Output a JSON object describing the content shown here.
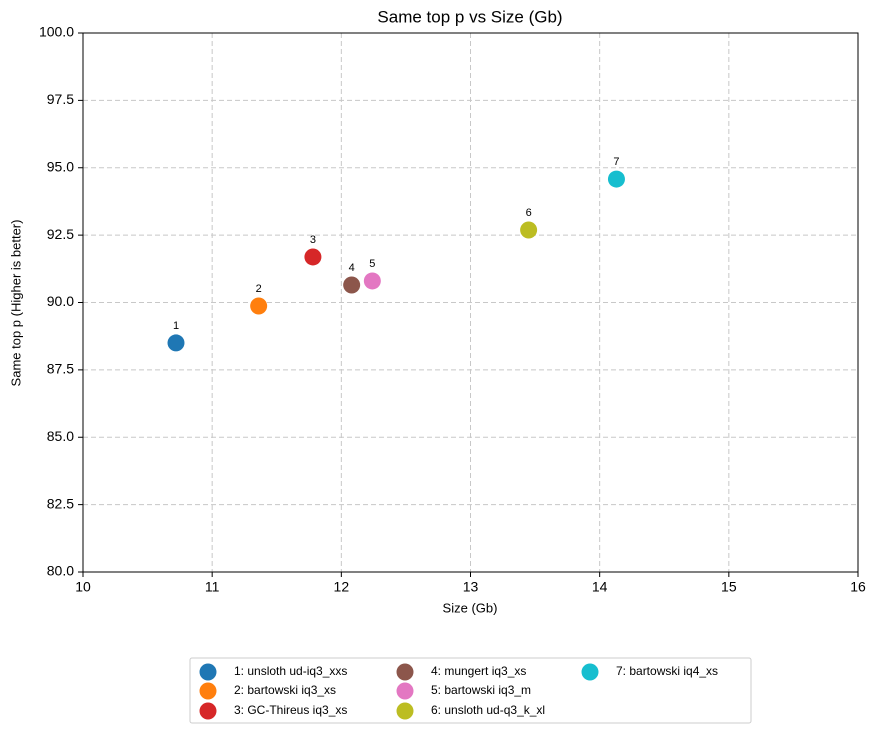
{
  "chart_data": {
    "type": "scatter",
    "title": "Same top p vs Size (Gb)",
    "x_label": "Size (Gb)",
    "y_label": "Same top p (Higher is better)",
    "xlim": [
      10,
      16
    ],
    "xticks": [
      10,
      11,
      12,
      13,
      14,
      15,
      16
    ],
    "ylim": [
      80,
      100
    ],
    "yticks": [
      {
        "value": 80,
        "label": "80.0"
      },
      82.5,
      {
        "value": 85,
        "label": "85.0"
      },
      87.5,
      {
        "value": 90,
        "label": "90.0"
      },
      92.5,
      {
        "value": 95,
        "label": "95.0"
      },
      97.5,
      {
        "value": 100,
        "label": "100.0"
      }
    ],
    "grid": true,
    "legend": "bottom",
    "series": [
      {
        "name": "1: unsloth ud-iq3_xxs",
        "color": "#1f77b4",
        "x": [
          10.72
        ],
        "values": [
          88.5
        ],
        "point_labels": [
          "1"
        ]
      },
      {
        "name": "2: bartowski iq3_xs",
        "color": "#ff7f0e",
        "x": [
          11.36
        ],
        "values": [
          89.87
        ],
        "point_labels": [
          "2"
        ]
      },
      {
        "name": "3: GC-Thireus iq3_xs",
        "color": "#d62728",
        "x": [
          11.78
        ],
        "values": [
          91.69
        ],
        "point_labels": [
          "3"
        ]
      },
      {
        "name": "4: mungert iq3_xs",
        "color": "#8c564b",
        "x": [
          12.08
        ],
        "values": [
          90.65
        ],
        "point_labels": [
          "4"
        ]
      },
      {
        "name": "5: bartowski iq3_m",
        "color": "#e377c2",
        "x": [
          12.24
        ],
        "values": [
          90.8
        ],
        "point_labels": [
          "5"
        ]
      },
      {
        "name": "6: unsloth ud-q3_k_xl",
        "color": "#bcbd22",
        "x": [
          13.45
        ],
        "values": [
          92.69
        ],
        "point_labels": [
          "6"
        ]
      },
      {
        "name": "7: bartowski iq4_xs",
        "color": "#17becf",
        "x": [
          14.13
        ],
        "values": [
          94.58
        ],
        "point_labels": [
          "7"
        ]
      }
    ]
  }
}
